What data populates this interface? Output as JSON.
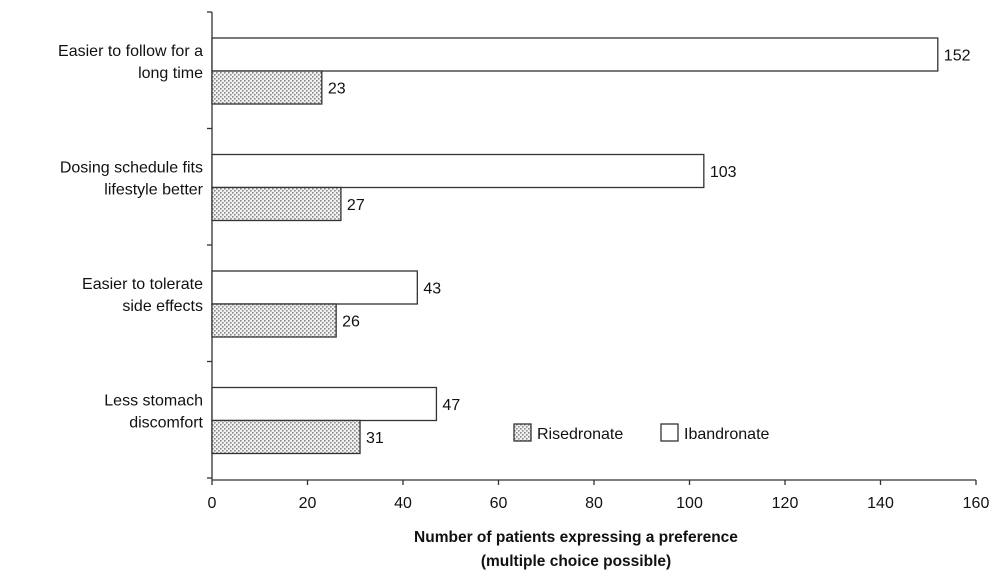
{
  "chart_data": {
    "type": "bar",
    "orientation": "horizontal",
    "categories": [
      [
        "Easier to follow for a",
        "long time"
      ],
      [
        "Dosing schedule fits",
        "lifestyle better"
      ],
      [
        "Easier to tolerate",
        "side effects"
      ],
      [
        "Less stomach",
        "discomfort"
      ]
    ],
    "series": [
      {
        "name": "Ibandronate",
        "values": [
          152,
          103,
          43,
          47
        ],
        "pattern": "open"
      },
      {
        "name": "Risedronate",
        "values": [
          23,
          27,
          26,
          31
        ],
        "pattern": "dotted"
      }
    ],
    "xlim": [
      0,
      160
    ],
    "xticks": [
      0,
      20,
      40,
      60,
      80,
      100,
      120,
      140,
      160
    ],
    "xlabel": [
      "Number of patients expressing a preference",
      "(multiple choice possible)"
    ],
    "ylabel": "",
    "title": "",
    "grid": false,
    "legend": {
      "placement": "bottom-right inside plot",
      "order": [
        "Risedronate",
        "Ibandronate"
      ]
    },
    "colors": {
      "bar_fill_open": "#ffffff",
      "bar_stroke": "#333333",
      "dot_pattern_background": "#f2f2f2",
      "dot_pattern_dots": "#8a8a8a"
    }
  }
}
